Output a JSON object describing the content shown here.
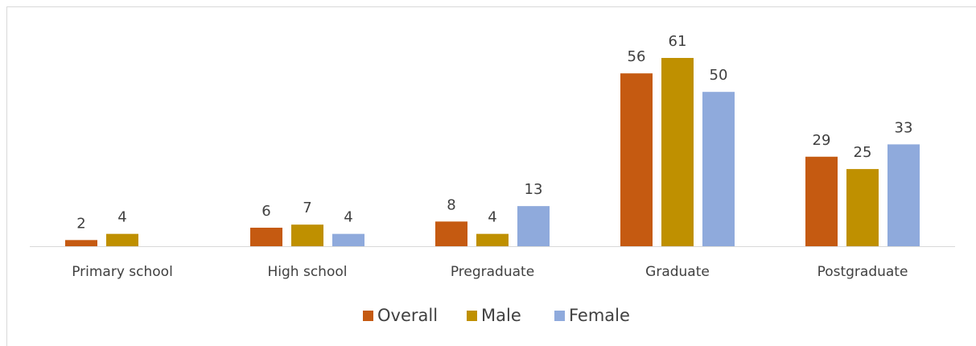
{
  "chart_data": {
    "type": "bar",
    "categories": [
      "Primary school",
      "High school",
      "Pregraduate",
      "Graduate",
      "Postgraduate"
    ],
    "series": [
      {
        "name": "Overall",
        "color": "#c55a11",
        "values": [
          2,
          6,
          8,
          56,
          29
        ]
      },
      {
        "name": "Male",
        "color": "#bf9000",
        "values": [
          4,
          7,
          4,
          61,
          25
        ]
      },
      {
        "name": "Female",
        "color": "#8faadc",
        "values": [
          null,
          4,
          13,
          50,
          33
        ]
      }
    ],
    "legend": "bottom"
  }
}
